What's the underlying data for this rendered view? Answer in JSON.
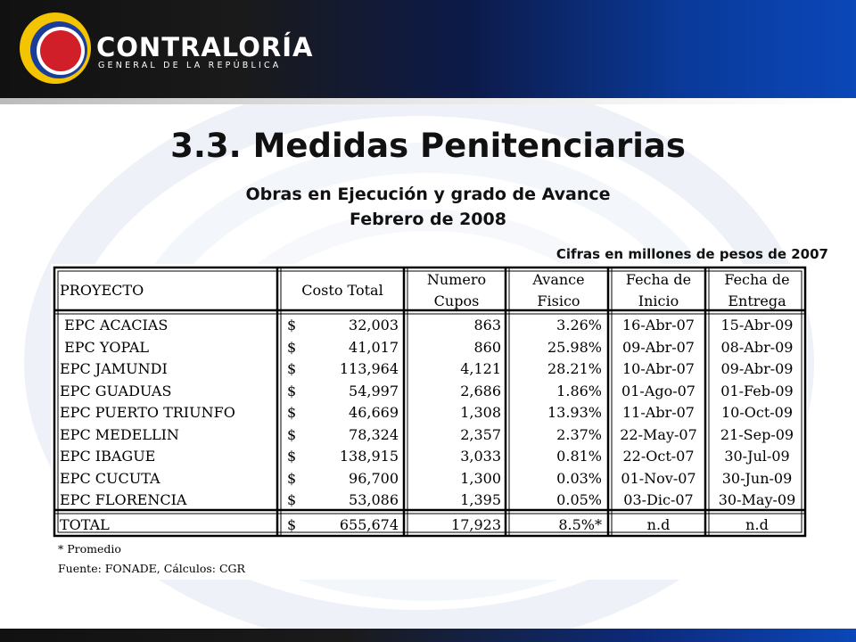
{
  "header": {
    "brand": "CONTRALORÍA",
    "brand_sub": "GENERAL DE LA REPÚBLICA",
    "logo_colors": [
      "#f4c400",
      "#1a3d9a",
      "#d11f2a"
    ]
  },
  "slide": {
    "title": "3.3. Medidas Penitenciarias",
    "subtitle_1": "Obras en Ejecución y grado de Avance",
    "subtitle_2": "Febrero de 2008",
    "note": "Cifras en millones de pesos de 2007"
  },
  "table": {
    "headers": {
      "proyecto": "PROYECTO",
      "costo": "Costo Total",
      "cupos_1": "Numero",
      "cupos_2": "Cupos",
      "avance_1": "Avance",
      "avance_2": "Fisico",
      "inicio_1": "Fecha de",
      "inicio_2": "Inicio",
      "entrega_1": "Fecha de",
      "entrega_2": "Entrega"
    },
    "rows": [
      {
        "proyecto": " EPC ACACIAS",
        "currency": "$",
        "costo": "32,003",
        "cupos": "863",
        "avance": "3.26%",
        "inicio": "16-Abr-07",
        "entrega": "15-Abr-09"
      },
      {
        "proyecto": " EPC YOPAL",
        "currency": "$",
        "costo": "41,017",
        "cupos": "860",
        "avance": "25.98%",
        "inicio": "09-Abr-07",
        "entrega": "08-Abr-09"
      },
      {
        "proyecto": "EPC JAMUNDI",
        "currency": "$",
        "costo": "113,964",
        "cupos": "4,121",
        "avance": "28.21%",
        "inicio": "10-Abr-07",
        "entrega": "09-Abr-09"
      },
      {
        "proyecto": "EPC GUADUAS",
        "currency": "$",
        "costo": "54,997",
        "cupos": "2,686",
        "avance": "1.86%",
        "inicio": "01-Ago-07",
        "entrega": "01-Feb-09"
      },
      {
        "proyecto": "EPC PUERTO TRIUNFO",
        "currency": "$",
        "costo": "46,669",
        "cupos": "1,308",
        "avance": "13.93%",
        "inicio": "11-Abr-07",
        "entrega": "10-Oct-09"
      },
      {
        "proyecto": "EPC MEDELLIN",
        "currency": "$",
        "costo": "78,324",
        "cupos": "2,357",
        "avance": "2.37%",
        "inicio": "22-May-07",
        "entrega": "21-Sep-09"
      },
      {
        "proyecto": "EPC IBAGUE",
        "currency": "$",
        "costo": "138,915",
        "cupos": "3,033",
        "avance": "0.81%",
        "inicio": "22-Oct-07",
        "entrega": "30-Jul-09"
      },
      {
        "proyecto": "EPC CUCUTA",
        "currency": "$",
        "costo": "96,700",
        "cupos": "1,300",
        "avance": "0.03%",
        "inicio": "01-Nov-07",
        "entrega": "30-Jun-09"
      },
      {
        "proyecto": "EPC FLORENCIA",
        "currency": "$",
        "costo": "53,086",
        "cupos": "1,395",
        "avance": "0.05%",
        "inicio": "03-Dic-07",
        "entrega": "30-May-09"
      }
    ],
    "total": {
      "proyecto": "TOTAL",
      "currency": "$",
      "costo": "655,674",
      "cupos": "17,923",
      "avance": "8.5%*",
      "inicio": "n.d",
      "entrega": "n.d"
    },
    "footnote": "* Promedio",
    "source": "Fuente: FONADE, Cálculos: CGR"
  }
}
